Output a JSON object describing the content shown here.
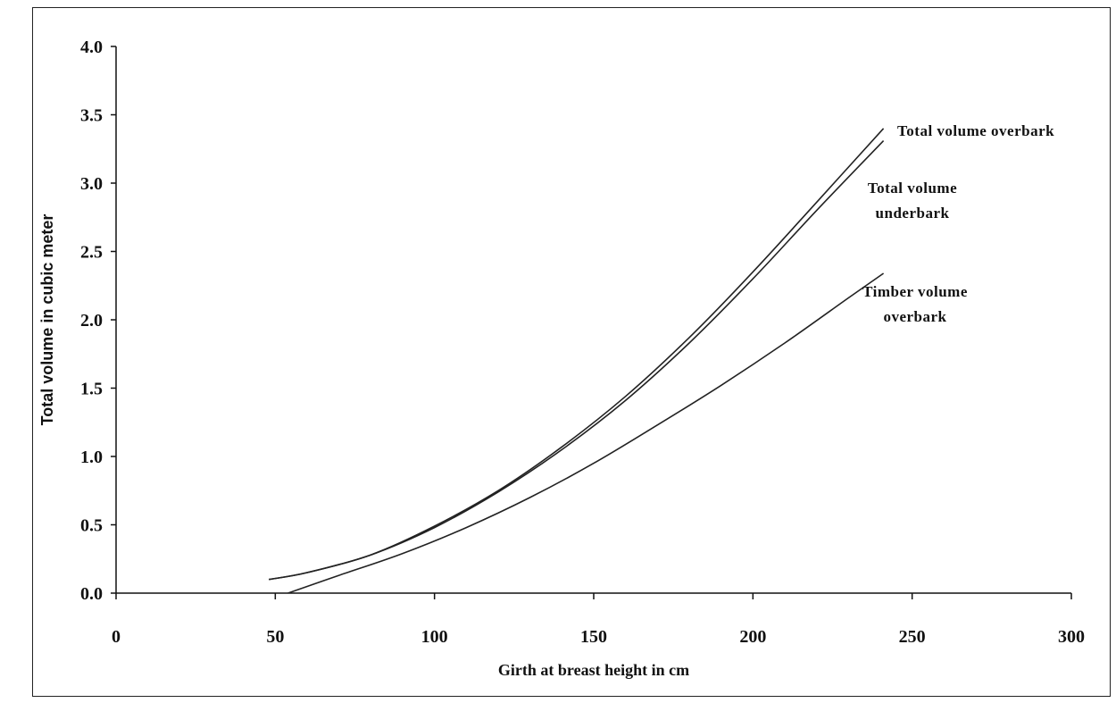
{
  "chart_data": {
    "type": "line",
    "title": "",
    "xlabel": "Girth at breast height in cm",
    "ylabel": "Total volume in cubic meter",
    "xlim": [
      0,
      300
    ],
    "ylim": [
      0,
      4.0
    ],
    "xticks": [
      "0",
      "50",
      "100",
      "150",
      "200",
      "250",
      "300"
    ],
    "yticks": [
      "0.0",
      "0.5",
      "1.0",
      "1.5",
      "2.0",
      "2.5",
      "3.0",
      "3.5",
      "4.0"
    ],
    "grid": false,
    "legend": "none",
    "series": [
      {
        "name": "Total volume overbark",
        "label_lines": [
          "Total volume overbark"
        ],
        "x": [
          48,
          60,
          80,
          100,
          120,
          140,
          160,
          180,
          200,
          220,
          241
        ],
        "y": [
          0.1,
          0.15,
          0.28,
          0.49,
          0.75,
          1.07,
          1.44,
          1.87,
          2.35,
          2.86,
          3.4
        ]
      },
      {
        "name": "Total volume underbark",
        "label_lines": [
          "Total volume",
          "underbark"
        ],
        "x": [
          48,
          60,
          80,
          100,
          120,
          140,
          160,
          180,
          200,
          220,
          241
        ],
        "y": [
          0.1,
          0.15,
          0.28,
          0.48,
          0.74,
          1.05,
          1.41,
          1.83,
          2.3,
          2.8,
          3.31
        ]
      },
      {
        "name": "Timber volume overbark",
        "label_lines": [
          "Timber volume",
          "overbark"
        ],
        "x": [
          54,
          70,
          90,
          110,
          130,
          150,
          170,
          190,
          210,
          230,
          241
        ],
        "y": [
          0.0,
          0.13,
          0.29,
          0.48,
          0.7,
          0.95,
          1.23,
          1.52,
          1.83,
          2.16,
          2.34
        ]
      }
    ]
  }
}
